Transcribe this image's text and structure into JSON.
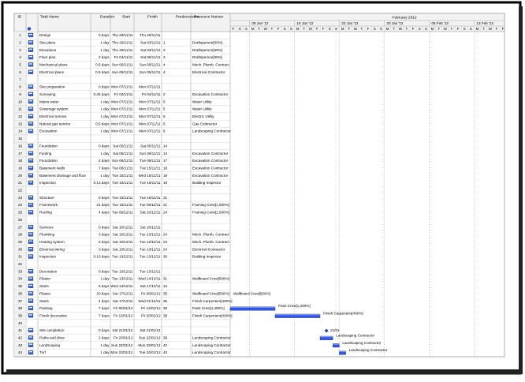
{
  "columns": [
    "ID",
    "Task Name",
    "Duration",
    "Start",
    "Finish",
    "Predecessors",
    "Resource Names"
  ],
  "timescale": {
    "month": "February 2012",
    "weeks": [
      "09 Jan '12",
      "16 Jan '12",
      "23 Jan '12",
      "30 Jan '12",
      "06 Feb '12",
      "13 Feb '12"
    ],
    "days": [
      "F",
      "S",
      "S",
      "M",
      "T",
      "W",
      "T",
      "F",
      "S",
      "S",
      "M",
      "T",
      "W",
      "T",
      "F",
      "S",
      "S",
      "M",
      "T",
      "W",
      "T",
      "F",
      "S",
      "S",
      "M",
      "T",
      "W",
      "T",
      "F",
      "S",
      "S",
      "M",
      "T",
      "W",
      "T",
      "F",
      "S",
      "S",
      "M",
      "T",
      "W",
      "T",
      "F"
    ]
  },
  "tasks": [
    {
      "id": 1,
      "name": "Design",
      "duration": "0 days",
      "start": "Thu 29/11/11",
      "finish": "Thu 29/11/11"
    },
    {
      "id": 2,
      "name": "Site plans",
      "duration": "1 day",
      "start": "Thu 29/11/11",
      "finish": "Sat 03/11/11",
      "pred": "1",
      "resource": "Draftsperson[50%]"
    },
    {
      "id": 3,
      "name": "Elevations",
      "duration": "1 day",
      "start": "Thu 29/11/11",
      "finish": "Sat 03/11/11",
      "pred": "2",
      "resource": "Draftsperson[50%]"
    },
    {
      "id": 4,
      "name": "Floor plan",
      "duration": "2 days",
      "start": "Fri 04/11/11",
      "finish": "Sat 05/11/11",
      "pred": "3",
      "resource": "Draftsperson[50%]"
    },
    {
      "id": 5,
      "name": "Mechanical plans",
      "duration": "0.5 days",
      "start": "Sun 06/11/11",
      "finish": "Sun 06/11/11",
      "pred": "4",
      "resource": "Mech. Plumb. Contract"
    },
    {
      "id": 6,
      "name": "Electrical plans",
      "duration": "0.5 days",
      "start": "Sun 06/11/11",
      "finish": "Sun 06/11/11",
      "pred": "4",
      "resource": "Electrical Contractor"
    },
    {
      "id": 7
    },
    {
      "id": 8,
      "name": "Site preparation",
      "duration": "0 days",
      "start": "Mon 07/11/11",
      "finish": "Mon 07/11/11"
    },
    {
      "id": 9,
      "name": "Surveying",
      "duration": "0.25 days",
      "start": "Fri 04/11/11",
      "finish": "Fri 04/11/11",
      "pred": "2",
      "resource": "Excavation Contractor"
    },
    {
      "id": 10,
      "name": "Mains water",
      "duration": "1 day",
      "start": "Mon 07/11/11",
      "finish": "Mon 07/11/11",
      "pred": "5",
      "resource": "Water Utility"
    },
    {
      "id": 11,
      "name": "Sewerage system",
      "duration": "1 day",
      "start": "Mon 07/11/11",
      "finish": "Mon 07/11/11",
      "pred": "5",
      "resource": "Water Utility"
    },
    {
      "id": 12,
      "name": "Electrical service",
      "duration": "1 day",
      "start": "Mon 07/11/11",
      "finish": "Mon 07/11/11",
      "pred": "6",
      "resource": "Electric Utility"
    },
    {
      "id": 13,
      "name": "Natural gas service",
      "duration": "0.5 days",
      "start": "Mon 07/11/11",
      "finish": "Mon 07/11/11",
      "pred": "5",
      "resource": "Gas Contractor"
    },
    {
      "id": 14,
      "name": "Excavation",
      "duration": "1 day",
      "start": "Mon 07/11/11",
      "finish": "Mon 07/11/11",
      "pred": "9",
      "resource": "Landscaping Contractor"
    },
    {
      "id": 15
    },
    {
      "id": 16,
      "name": "Foundation",
      "duration": "0 days",
      "start": "Sat 05/11/11",
      "finish": "Sat 05/11/11",
      "pred": "14"
    },
    {
      "id": 17,
      "name": "Footing",
      "duration": "1 day",
      "start": "Sat 05/11/11",
      "finish": "Sun 06/11/11",
      "pred": "14",
      "resource": "Excavation Contractor"
    },
    {
      "id": 18,
      "name": "Foundation",
      "duration": "2 days",
      "start": "Sun 06/11/11",
      "finish": "Tue 08/11/11",
      "pred": "17",
      "resource": "Excavation Contractor"
    },
    {
      "id": 19,
      "name": "Basement walls",
      "duration": "7 days",
      "start": "Tue 08/11/11",
      "finish": "Tue 15/11/11",
      "pred": "18",
      "resource": "Excavation Contractor"
    },
    {
      "id": 20,
      "name": "Basement drainage and floor",
      "duration": "1 day",
      "start": "Tue 15/11/11",
      "finish": "Wed 16/11/11",
      "pred": "19",
      "resource": "Excavation Contractor"
    },
    {
      "id": 21,
      "name": "Inspection",
      "duration": "0.13 days",
      "start": "Tue 15/11/11",
      "finish": "Tue 15/11/11",
      "pred": "19",
      "resource": "Building Inspector"
    },
    {
      "id": 22
    },
    {
      "id": 23,
      "name": "Structure",
      "duration": "0 days",
      "start": "Tue 15/11/11",
      "finish": "Tue 15/11/11",
      "pred": "21"
    },
    {
      "id": 24,
      "name": "Framework",
      "duration": "21 days",
      "start": "Tue 15/11/11",
      "finish": "Tue 06/12/11",
      "pred": "21",
      "resource": "Framing Crew[1,500%]"
    },
    {
      "id": 25,
      "name": "Roofing",
      "duration": "4 days",
      "start": "Tue 06/12/11",
      "finish": "Sat 10/12/11",
      "pred": "24",
      "resource": "Framing Crew[1,500%]"
    },
    {
      "id": 26
    },
    {
      "id": 27,
      "name": "Services",
      "duration": "0 days",
      "start": "Sat 10/12/11",
      "finish": "Sat 10/12/11"
    },
    {
      "id": 28,
      "name": "Plumbing",
      "duration": "3 days",
      "start": "Sat 10/12/11",
      "finish": "Tue 13/12/11",
      "pred": "24",
      "resource": "Mech. Plumb. Contract"
    },
    {
      "id": 29,
      "name": "Heating system",
      "duration": "3 days",
      "start": "Sat 10/12/11",
      "finish": "Tue 13/12/11",
      "pred": "24",
      "resource": "Mech. Plumb. Contract"
    },
    {
      "id": 30,
      "name": "Electrical wiring",
      "duration": "3 days",
      "start": "Sat 10/12/11",
      "finish": "Tue 13/12/11",
      "pred": "24",
      "resource": "Electrical Contractor"
    },
    {
      "id": 31,
      "name": "Inspection",
      "duration": "0.13 days",
      "start": "Tue 13/12/11",
      "finish": "Tue 13/12/11",
      "pred": "30",
      "resource": "Building Inspector"
    },
    {
      "id": 32
    },
    {
      "id": 33,
      "name": "Decoration",
      "duration": "0 days",
      "start": "Tue 13/12/11",
      "finish": "Tue 13/12/11"
    },
    {
      "id": 34,
      "name": "Plaster",
      "duration": "1 day",
      "start": "Tue 13/12/11",
      "finish": "Wed 14/12/11",
      "pred": "31",
      "resource": "Wallboard Crew[500%]"
    },
    {
      "id": 35,
      "name": "Stairs",
      "duration": "3 days",
      "start": "Wed 14/12/11",
      "finish": "Sat 17/12/11",
      "pred": "34"
    },
    {
      "id": 36,
      "name": "Plaster",
      "duration": "20 days",
      "start": "Sat 17/12/11",
      "finish": "Fri 06/01/12",
      "pred": "35",
      "resource": "Wallboard Crew[500%]"
    },
    {
      "id": 37,
      "name": "Stairs",
      "duration": "4 days",
      "start": "Sat 17/12/11",
      "finish": "Wed 21/12/11",
      "pred": "35",
      "resource": "Finish Carpenters[400%]"
    },
    {
      "id": 38,
      "name": "Painting",
      "duration": "7 days",
      "start": "Fri 06/01/12",
      "finish": "Fri 13/01/12",
      "pred": "36",
      "resource": "Paint Crew[1,200%]"
    },
    {
      "id": 39,
      "name": "Finish decoration",
      "duration": "7 days",
      "start": "Fri 13/01/12",
      "finish": "Fri 20/01/12",
      "pred": "38",
      "resource": "Finish Carpenters[400%]"
    },
    {
      "id": 40
    },
    {
      "id": 41,
      "name": "Site completion",
      "duration": "0 days",
      "start": "Sat 21/01/12",
      "finish": "Sat 21/01/12",
      "date_label": "21/01"
    },
    {
      "id": 42,
      "name": "Paths and drive",
      "duration": "2 days",
      "start": "Fri 20/01/12",
      "finish": "Sun 22/01/12",
      "pred": "39",
      "resource": "Landscaping Contractor"
    },
    {
      "id": 43,
      "name": "Landscaping",
      "duration": "1 day",
      "start": "Sun 22/01/12",
      "finish": "Mon 23/01/12",
      "pred": "42",
      "resource": "Landscaping Contractor"
    },
    {
      "id": 44,
      "name": "Turf",
      "duration": "1 day",
      "start": "Mon 23/01/12",
      "finish": "Tue 24/01/12",
      "pred": "43",
      "resource": "Landscaping Contractor"
    }
  ]
}
